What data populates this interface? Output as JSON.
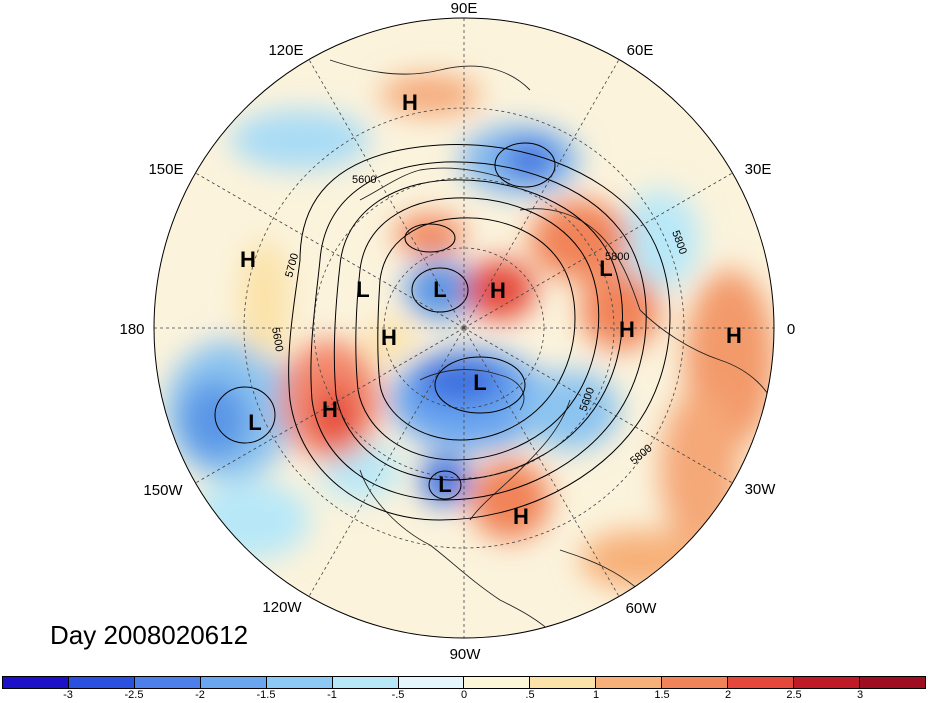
{
  "title": "Day 2008020612",
  "longitude_labels": [
    "90E",
    "60E",
    "30E",
    "0",
    "30W",
    "60W",
    "90W",
    "120W",
    "150W",
    "180",
    "150E",
    "120E"
  ],
  "pressure_centers": [
    "H",
    "L",
    "H",
    "L",
    "L",
    "H",
    "H",
    "L",
    "L",
    "H",
    "H",
    "L",
    "H",
    "H"
  ],
  "contour_labels": [
    "5600",
    "5700",
    "5800",
    "5600",
    "5800",
    "5600",
    "5800"
  ],
  "colorbar": {
    "ticks": [
      "-3",
      "-2.5",
      "-2",
      "-1.5",
      "-1",
      "-.5",
      "0",
      ".5",
      "1",
      "1.5",
      "2",
      "2.5",
      "3"
    ],
    "colors": [
      "#1c10c8",
      "#2b50e0",
      "#4c7fea",
      "#6aa6f0",
      "#8ccaf5",
      "#b8e8f8",
      "#e4f6fb",
      "#fbf6d8",
      "#fbe2a8",
      "#f7b079",
      "#f18358",
      "#e5483a",
      "#c01a28",
      "#9e0e20"
    ]
  }
}
